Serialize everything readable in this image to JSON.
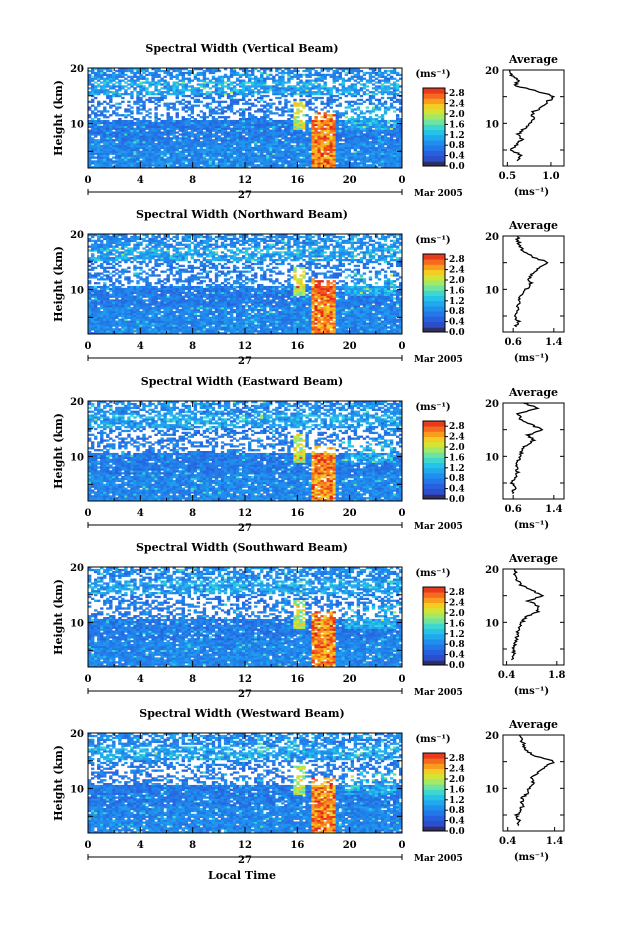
{
  "chart_data": [
    {
      "type": "heatmap",
      "title": "Spectral Width (Vertical Beam)",
      "ylabel": "Height (km)",
      "ylim": [
        2,
        20
      ],
      "y_ticks": [
        "20",
        "10"
      ],
      "x_ticks": [
        "0",
        "4",
        "8",
        "12",
        "16",
        "20",
        "0"
      ],
      "xlim": [
        0,
        24
      ],
      "day_label": "27",
      "month_label": "Mar 2005",
      "colorbar": {
        "unit": "(ms⁻¹)",
        "ticks": [
          "2.8",
          "2.4",
          "2.0",
          "1.6",
          "1.2",
          "0.8",
          "0.4",
          "0.0"
        ],
        "range": [
          0,
          3.0
        ]
      },
      "profile": {
        "title": "Average",
        "xlabel": "(ms⁻¹)",
        "x_ticks": [
          "0.5",
          "1.0"
        ],
        "xlim": [
          0.45,
          1.15
        ],
        "ylim": [
          2,
          20
        ],
        "y_ticks": [
          "20",
          "10"
        ]
      },
      "profile_points": [
        [
          0.6,
          3
        ],
        [
          0.66,
          4
        ],
        [
          0.55,
          5
        ],
        [
          0.6,
          6
        ],
        [
          0.67,
          7
        ],
        [
          0.62,
          8
        ],
        [
          0.7,
          9
        ],
        [
          0.75,
          10
        ],
        [
          0.8,
          11
        ],
        [
          0.78,
          12
        ],
        [
          0.9,
          13
        ],
        [
          0.95,
          14
        ],
        [
          1.05,
          15
        ],
        [
          0.85,
          16
        ],
        [
          0.6,
          17
        ],
        [
          0.62,
          18
        ],
        [
          0.55,
          19
        ],
        [
          0.52,
          20
        ]
      ]
    },
    {
      "type": "heatmap",
      "title": "Spectral Width (Northward Beam)",
      "ylabel": "Height (km)",
      "ylim": [
        2,
        20
      ],
      "y_ticks": [
        "20",
        "10"
      ],
      "x_ticks": [
        "0",
        "4",
        "8",
        "12",
        "16",
        "20",
        "0"
      ],
      "xlim": [
        0,
        24
      ],
      "day_label": "27",
      "month_label": "Mar 2005",
      "colorbar": {
        "unit": "(ms⁻¹)",
        "ticks": [
          "2.8",
          "2.4",
          "2.0",
          "1.6",
          "1.2",
          "0.8",
          "0.4",
          "0.0"
        ],
        "range": [
          0,
          3.0
        ]
      },
      "profile": {
        "title": "Average",
        "xlabel": "(ms⁻¹)",
        "x_ticks": [
          "0.6",
          "1.4"
        ],
        "xlim": [
          0.4,
          1.6
        ],
        "ylim": [
          2,
          20
        ],
        "y_ticks": [
          "20",
          "10"
        ]
      },
      "profile_points": [
        [
          0.65,
          3
        ],
        [
          0.7,
          4
        ],
        [
          0.62,
          5
        ],
        [
          0.68,
          6
        ],
        [
          0.7,
          7
        ],
        [
          0.72,
          8
        ],
        [
          0.75,
          9
        ],
        [
          0.85,
          10
        ],
        [
          0.95,
          11
        ],
        [
          0.9,
          12
        ],
        [
          1.0,
          13
        ],
        [
          1.1,
          14
        ],
        [
          1.3,
          15
        ],
        [
          1.0,
          16
        ],
        [
          0.8,
          17
        ],
        [
          0.75,
          18
        ],
        [
          0.7,
          19
        ],
        [
          0.68,
          20
        ]
      ]
    },
    {
      "type": "heatmap",
      "title": "Spectral Width (Eastward Beam)",
      "ylabel": "Height (km)",
      "ylim": [
        2,
        20
      ],
      "y_ticks": [
        "20",
        "10"
      ],
      "x_ticks": [
        "0",
        "4",
        "8",
        "12",
        "16",
        "20",
        "0"
      ],
      "xlim": [
        0,
        24
      ],
      "day_label": "27",
      "month_label": "Mar 2005",
      "colorbar": {
        "unit": "(ms⁻¹)",
        "ticks": [
          "2.8",
          "2.4",
          "2.0",
          "1.6",
          "1.2",
          "0.8",
          "0.4",
          "0.0"
        ],
        "range": [
          0,
          3.0
        ]
      },
      "profile": {
        "title": "Average",
        "xlabel": "(ms⁻¹)",
        "x_ticks": [
          "0.6",
          "1.4"
        ],
        "xlim": [
          0.4,
          1.6
        ],
        "ylim": [
          2,
          20
        ],
        "y_ticks": [
          "20",
          "10"
        ]
      },
      "profile_points": [
        [
          0.6,
          3
        ],
        [
          0.62,
          4
        ],
        [
          0.58,
          5
        ],
        [
          0.65,
          6
        ],
        [
          0.68,
          7
        ],
        [
          0.66,
          8
        ],
        [
          0.7,
          9
        ],
        [
          0.72,
          10
        ],
        [
          0.78,
          11
        ],
        [
          0.85,
          12
        ],
        [
          1.0,
          13
        ],
        [
          0.9,
          14
        ],
        [
          1.15,
          15
        ],
        [
          0.95,
          16
        ],
        [
          0.75,
          17
        ],
        [
          0.7,
          18
        ],
        [
          1.1,
          19
        ],
        [
          0.8,
          20
        ]
      ]
    },
    {
      "type": "heatmap",
      "title": "Spectral Width (Southward Beam)",
      "ylabel": "Height (km)",
      "ylim": [
        2,
        20
      ],
      "y_ticks": [
        "20",
        "10"
      ],
      "x_ticks": [
        "0",
        "4",
        "8",
        "12",
        "16",
        "20",
        "0"
      ],
      "xlim": [
        0,
        24
      ],
      "day_label": "27",
      "month_label": "Mar 2005",
      "colorbar": {
        "unit": "(ms⁻¹)",
        "ticks": [
          "2.8",
          "2.4",
          "2.0",
          "1.6",
          "1.2",
          "0.8",
          "0.4",
          "0.0"
        ],
        "range": [
          0,
          3.0
        ]
      },
      "profile": {
        "title": "Average",
        "xlabel": "(ms⁻¹)",
        "x_ticks": [
          "0.4",
          "1.8"
        ],
        "xlim": [
          0.3,
          2.0
        ],
        "ylim": [
          2,
          20
        ],
        "y_ticks": [
          "20",
          "10"
        ]
      },
      "profile_points": [
        [
          0.55,
          3
        ],
        [
          0.6,
          4
        ],
        [
          0.58,
          5
        ],
        [
          0.65,
          6
        ],
        [
          0.7,
          7
        ],
        [
          0.68,
          8
        ],
        [
          0.75,
          9
        ],
        [
          0.82,
          10
        ],
        [
          0.95,
          11
        ],
        [
          1.25,
          12
        ],
        [
          1.3,
          13
        ],
        [
          1.0,
          14
        ],
        [
          1.4,
          15
        ],
        [
          1.1,
          16
        ],
        [
          0.8,
          17
        ],
        [
          0.7,
          18
        ],
        [
          0.65,
          19
        ],
        [
          0.6,
          20
        ]
      ]
    },
    {
      "type": "heatmap",
      "title": "Spectral Width (Westward Beam)",
      "ylabel": "Height (km)",
      "xlabel": "Local Time",
      "ylim": [
        2,
        20
      ],
      "y_ticks": [
        "20",
        "10"
      ],
      "x_ticks": [
        "0",
        "4",
        "8",
        "12",
        "16",
        "20",
        "0"
      ],
      "xlim": [
        0,
        24
      ],
      "day_label": "27",
      "month_label": "Mar 2005",
      "colorbar": {
        "unit": "(ms⁻¹)",
        "ticks": [
          "2.8",
          "2.4",
          "2.0",
          "1.6",
          "1.2",
          "0.8",
          "0.4",
          "0.0"
        ],
        "range": [
          0,
          3.0
        ]
      },
      "profile": {
        "title": "Average",
        "xlabel": "(ms⁻¹)",
        "x_ticks": [
          "0.4",
          "1.4"
        ],
        "xlim": [
          0.3,
          1.6
        ],
        "ylim": [
          2,
          20
        ],
        "y_ticks": [
          "20",
          "10"
        ]
      },
      "profile_points": [
        [
          0.6,
          3
        ],
        [
          0.65,
          4
        ],
        [
          0.6,
          5
        ],
        [
          0.7,
          6
        ],
        [
          0.72,
          7
        ],
        [
          0.7,
          8
        ],
        [
          0.8,
          9
        ],
        [
          0.85,
          10
        ],
        [
          0.95,
          11
        ],
        [
          0.9,
          12
        ],
        [
          1.05,
          13
        ],
        [
          1.2,
          14
        ],
        [
          1.4,
          15
        ],
        [
          1.0,
          16
        ],
        [
          0.8,
          17
        ],
        [
          0.75,
          18
        ],
        [
          0.7,
          19
        ],
        [
          0.65,
          20
        ]
      ]
    }
  ]
}
